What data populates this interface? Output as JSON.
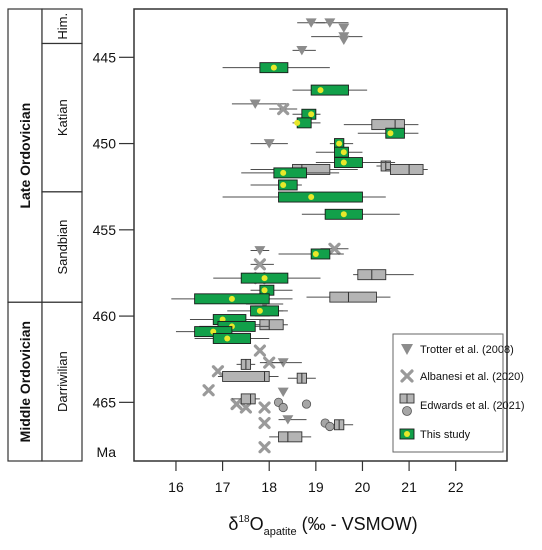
{
  "chart_data": {
    "type": "scatter",
    "x_axis": {
      "title_main": "δ",
      "title_sup": "18",
      "title_mid": "O",
      "title_sub": "apatite",
      "title_tail": " (‰ - VSMOW)",
      "ticks": [
        "16",
        "17",
        "18",
        "19",
        "20",
        "21",
        "22"
      ],
      "range": [
        15.1,
        23.1
      ]
    },
    "y_axis": {
      "ticks": [
        "445",
        "450",
        "455",
        "460",
        "465"
      ],
      "unit_label": "Ma",
      "range": [
        442.2,
        468.4
      ],
      "inverted": true
    },
    "stratigraphy": {
      "series": [
        {
          "label": "Late Ordovician",
          "top": 442.2,
          "bottom": 459.2
        },
        {
          "label": "Middle Ordovician",
          "top": 459.2,
          "bottom": 468.4
        }
      ],
      "stages": [
        {
          "label": "Him.",
          "top": 442.2,
          "bottom": 444.2
        },
        {
          "label": "Katian",
          "top": 444.2,
          "bottom": 452.8
        },
        {
          "label": "Sandbian",
          "top": 452.8,
          "bottom": 459.2
        },
        {
          "label": "Darriwilian",
          "top": 459.2,
          "bottom": 468.4
        }
      ]
    },
    "legend": {
      "position": "bottom-right",
      "entries": [
        {
          "label": "Trotter et al. (2008)",
          "marker": "triangle-down"
        },
        {
          "label": "Albanesi et al. (2020)",
          "marker": "cross"
        },
        {
          "label": "Edwards et al. (2021)",
          "marker": "box-and-circle"
        },
        {
          "label": "This study",
          "marker": "green-box"
        }
      ]
    },
    "colors": {
      "trotter": "#8c8c8c",
      "albanesi": "#9a9a9a",
      "edwards_box": "#b4b4b4",
      "edwards_circle": "#a6a6a6",
      "this_study_box": "#12a04a",
      "this_study_mean": "#e8e82a",
      "whisker": "#4d4d4d"
    },
    "series": [
      {
        "name": "Trotter et al. (2008)",
        "points": [
          {
            "x": 18.9,
            "y": 443.0
          },
          {
            "x": 19.3,
            "y": 443.0
          },
          {
            "x": 19.6,
            "y": 443.3
          },
          {
            "x": 19.6,
            "y": 443.8
          },
          {
            "x": 19.6,
            "y": 444.0
          },
          {
            "x": 18.7,
            "y": 444.6
          },
          {
            "x": 17.7,
            "y": 447.7
          },
          {
            "x": 18.0,
            "y": 450.0
          },
          {
            "x": 17.8,
            "y": 456.2
          },
          {
            "x": 17.9,
            "y": 459.3
          },
          {
            "x": 18.3,
            "y": 462.7
          },
          {
            "x": 18.3,
            "y": 464.4
          },
          {
            "x": 18.4,
            "y": 466.0
          }
        ],
        "ranges": [
          {
            "y": 443.0,
            "xmin": 18.6,
            "xmax": 19.2
          },
          {
            "y": 443.0,
            "xmin": 19.0,
            "xmax": 19.7
          },
          {
            "y": 443.8,
            "xmin": 18.9,
            "xmax": 20.0
          },
          {
            "y": 444.6,
            "xmin": 18.5,
            "xmax": 19.0
          },
          {
            "y": 447.7,
            "xmin": 17.2,
            "xmax": 18.4
          },
          {
            "y": 450.0,
            "xmin": 17.6,
            "xmax": 18.4
          },
          {
            "y": 456.2,
            "xmin": 17.6,
            "xmax": 18.0
          },
          {
            "y": 459.3,
            "xmin": 17.5,
            "xmax": 18.3
          },
          {
            "y": 462.7,
            "xmin": 17.9,
            "xmax": 18.7
          },
          {
            "y": 466.0,
            "xmin": 18.2,
            "xmax": 18.8
          }
        ]
      },
      {
        "name": "Albanesi et al. (2020)",
        "points": [
          {
            "x": 18.3,
            "y": 448.0
          },
          {
            "x": 19.4,
            "y": 456.1
          },
          {
            "x": 17.8,
            "y": 457.0
          },
          {
            "x": 17.8,
            "y": 457.8
          },
          {
            "x": 17.8,
            "y": 462.0
          },
          {
            "x": 18.0,
            "y": 462.7
          },
          {
            "x": 16.9,
            "y": 463.2
          },
          {
            "x": 16.7,
            "y": 464.3
          },
          {
            "x": 17.3,
            "y": 465.1
          },
          {
            "x": 17.5,
            "y": 465.3
          },
          {
            "x": 17.9,
            "y": 465.3
          },
          {
            "x": 17.9,
            "y": 466.2
          },
          {
            "x": 17.9,
            "y": 467.6
          }
        ],
        "ranges": [
          {
            "y": 448.0,
            "xmin": 18.0,
            "xmax": 18.6
          },
          {
            "y": 456.1,
            "xmin": 19.1,
            "xmax": 19.7
          },
          {
            "y": 457.0,
            "xmin": 17.6,
            "xmax": 18.1
          },
          {
            "y": 462.7,
            "xmin": 17.8,
            "xmax": 18.3
          }
        ]
      },
      {
        "name": "Edwards et al. (2021) boxes",
        "boxes": [
          {
            "y": 448.9,
            "q1": 20.2,
            "median": 20.7,
            "q3": 20.9,
            "min": 19.6,
            "max": 21.2
          },
          {
            "y": 451.5,
            "q1": 18.5,
            "median": 18.7,
            "q3": 19.3,
            "min": 17.6,
            "max": 19.9
          },
          {
            "y": 451.3,
            "q1": 20.4,
            "median": 20.5,
            "q3": 20.6,
            "min": 20.3,
            "max": 20.7
          },
          {
            "y": 451.5,
            "q1": 20.6,
            "median": 21.0,
            "q3": 21.3,
            "min": 20.5,
            "max": 21.4
          },
          {
            "y": 457.6,
            "q1": 19.9,
            "median": 20.2,
            "q3": 20.5,
            "min": 19.8,
            "max": 21.1
          },
          {
            "y": 458.9,
            "q1": 19.3,
            "median": 19.7,
            "q3": 20.3,
            "min": 18.8,
            "max": 20.6
          },
          {
            "y": 459.7,
            "q1": 17.7,
            "median": 17.9,
            "q3": 18.0,
            "min": 17.6,
            "max": 18.3
          },
          {
            "y": 460.5,
            "q1": 17.8,
            "median": 18.0,
            "q3": 18.3,
            "min": 17.7,
            "max": 18.4
          },
          {
            "y": 462.8,
            "q1": 17.4,
            "median": 17.5,
            "q3": 17.6,
            "min": 17.3,
            "max": 17.7
          },
          {
            "y": 463.5,
            "q1": 17.0,
            "median": 17.9,
            "q3": 18.0,
            "min": 16.9,
            "max": 18.2
          },
          {
            "y": 463.6,
            "q1": 18.6,
            "median": 18.7,
            "q3": 18.8,
            "min": 18.4,
            "max": 19.0
          },
          {
            "y": 464.8,
            "q1": 17.4,
            "median": 17.6,
            "q3": 17.7,
            "min": 17.2,
            "max": 17.8
          },
          {
            "y": 466.3,
            "q1": 19.4,
            "median": 19.5,
            "q3": 19.6,
            "min": 19.3,
            "max": 19.8
          },
          {
            "y": 467.0,
            "q1": 18.2,
            "median": 18.4,
            "q3": 18.7,
            "min": 18.0,
            "max": 18.9
          }
        ]
      },
      {
        "name": "Edwards et al. (2021) means",
        "points": [
          {
            "x": 18.2,
            "y": 465.0
          },
          {
            "x": 18.3,
            "y": 465.3
          },
          {
            "x": 18.8,
            "y": 465.1
          },
          {
            "x": 19.2,
            "y": 466.2
          },
          {
            "x": 19.3,
            "y": 466.4
          }
        ]
      },
      {
        "name": "This study",
        "boxes": [
          {
            "y": 445.6,
            "q1": 17.8,
            "q3": 18.4,
            "mean": 18.1,
            "min": 17.0,
            "max": 19.3
          },
          {
            "y": 446.9,
            "q1": 18.9,
            "q3": 19.7,
            "mean": 19.1,
            "min": 18.5,
            "max": 20.1
          },
          {
            "y": 448.3,
            "q1": 18.7,
            "q3": 19.0,
            "mean": 18.9,
            "min": 18.5,
            "max": 19.1
          },
          {
            "y": 448.8,
            "q1": 18.6,
            "q3": 18.9,
            "mean": 18.6,
            "min": 18.5,
            "max": 19.1
          },
          {
            "y": 449.4,
            "q1": 20.5,
            "q3": 20.9,
            "mean": 20.6,
            "min": 19.9,
            "max": 21.2
          },
          {
            "y": 450.0,
            "q1": 19.4,
            "q3": 19.6,
            "mean": 19.5,
            "min": 19.3,
            "max": 19.8
          },
          {
            "y": 450.5,
            "q1": 19.4,
            "q3": 19.7,
            "mean": 19.6,
            "min": 19.0,
            "max": 20.0
          },
          {
            "y": 451.1,
            "q1": 19.4,
            "q3": 20.0,
            "mean": 19.6,
            "min": 19.0,
            "max": 20.7
          },
          {
            "y": 451.7,
            "q1": 18.1,
            "q3": 18.8,
            "mean": 18.3,
            "min": 17.4,
            "max": 19.5
          },
          {
            "y": 452.4,
            "q1": 18.2,
            "q3": 18.6,
            "mean": 18.3,
            "min": 17.6,
            "max": 18.7
          },
          {
            "y": 453.1,
            "q1": 18.2,
            "q3": 20.0,
            "mean": 18.9,
            "min": 17.0,
            "max": 20.5
          },
          {
            "y": 454.1,
            "q1": 19.2,
            "q3": 20.0,
            "mean": 19.6,
            "min": 18.7,
            "max": 20.8
          },
          {
            "y": 456.4,
            "q1": 18.9,
            "q3": 19.3,
            "mean": 19.0,
            "min": 18.2,
            "max": 19.6
          },
          {
            "y": 457.8,
            "q1": 17.4,
            "q3": 18.4,
            "mean": 17.9,
            "min": 16.8,
            "max": 19.1
          },
          {
            "y": 458.5,
            "q1": 17.8,
            "q3": 18.1,
            "mean": 17.9,
            "min": 17.6,
            "max": 18.5
          },
          {
            "y": 459.0,
            "q1": 16.4,
            "q3": 18.0,
            "mean": 17.2,
            "min": 15.9,
            "max": 18.5
          },
          {
            "y": 459.7,
            "q1": 17.6,
            "q3": 18.2,
            "mean": 17.8,
            "min": 17.1,
            "max": 18.4
          },
          {
            "y": 460.2,
            "q1": 16.8,
            "q3": 17.5,
            "mean": 17.0,
            "min": 16.3,
            "max": 17.9
          },
          {
            "y": 460.6,
            "q1": 16.9,
            "q3": 17.7,
            "mean": 17.2,
            "min": 16.5,
            "max": 18.0
          },
          {
            "y": 460.9,
            "q1": 16.4,
            "q3": 17.2,
            "mean": 16.8,
            "min": 16.0,
            "max": 17.6
          },
          {
            "y": 461.3,
            "q1": 16.8,
            "q3": 17.6,
            "mean": 17.1,
            "min": 16.4,
            "max": 18.0
          }
        ]
      }
    ]
  }
}
